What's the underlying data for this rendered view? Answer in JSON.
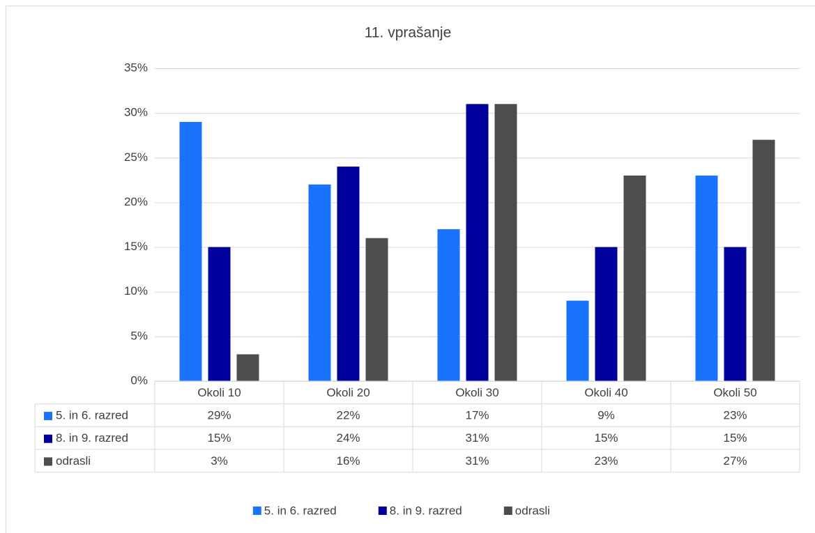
{
  "chart_data": {
    "type": "bar",
    "title": "11. vprašanje",
    "categories": [
      "Okoli 10",
      "Okoli 20",
      "Okoli 30",
      "Okoli 40",
      "Okoli 50"
    ],
    "series": [
      {
        "name": "5. in 6. razred",
        "color": "#1a73ff",
        "values": [
          29,
          22,
          17,
          9,
          23
        ],
        "value_labels": [
          "29%",
          "22%",
          "17%",
          "9%",
          "23%"
        ]
      },
      {
        "name": "8. in 9. razred",
        "color": "#00009c",
        "values": [
          15,
          24,
          31,
          15,
          15
        ],
        "value_labels": [
          "15%",
          "24%",
          "31%",
          "15%",
          "15%"
        ]
      },
      {
        "name": "odrasli",
        "color": "#4d4d4d",
        "values": [
          3,
          16,
          31,
          23,
          27
        ],
        "value_labels": [
          "3%",
          "16%",
          "31%",
          "23%",
          "27%"
        ]
      }
    ],
    "ylim": [
      0,
      35
    ],
    "yticks": [
      {
        "value": 0,
        "label": "0%"
      },
      {
        "value": 5,
        "label": "5%"
      },
      {
        "value": 10,
        "label": "10%"
      },
      {
        "value": 15,
        "label": "15%"
      },
      {
        "value": 20,
        "label": "20%"
      },
      {
        "value": 25,
        "label": "25%"
      },
      {
        "value": 30,
        "label": "30%"
      },
      {
        "value": 35,
        "label": "35%"
      }
    ],
    "grid": true,
    "legend": "bottom",
    "data_table": true
  }
}
